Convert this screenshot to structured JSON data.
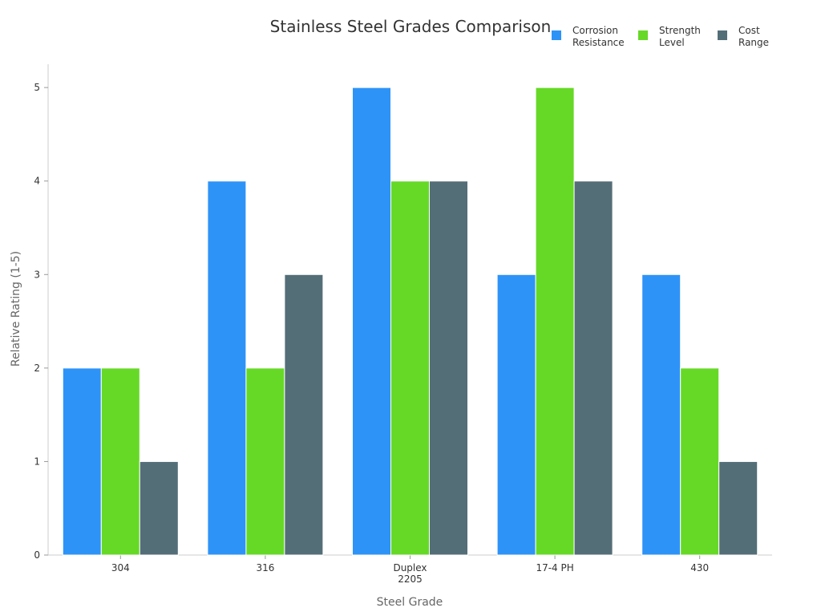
{
  "chart_data": {
    "type": "bar",
    "title": "Stainless Steel Grades Comparison",
    "xlabel": "Steel Grade",
    "ylabel": "Relative Rating (1-5)",
    "categories": [
      [
        "304"
      ],
      [
        "316"
      ],
      [
        "Duplex",
        "2205"
      ],
      [
        "17-4 PH"
      ],
      [
        "430"
      ]
    ],
    "series": [
      {
        "name": [
          "Corrosion",
          "Resistance"
        ],
        "color": "#2e93f7",
        "values": [
          2,
          4,
          5,
          3,
          3
        ]
      },
      {
        "name": [
          "Strength",
          "Level"
        ],
        "color": "#66d927",
        "values": [
          2,
          2,
          4,
          5,
          2
        ]
      },
      {
        "name": [
          "Cost",
          "Range"
        ],
        "color": "#546e78",
        "values": [
          1,
          3,
          4,
          4,
          1
        ]
      }
    ],
    "ylim": [
      0,
      5.25
    ],
    "yticks": [
      0,
      1,
      2,
      3,
      4,
      5
    ],
    "grid": false,
    "legend_position": "top-right"
  }
}
